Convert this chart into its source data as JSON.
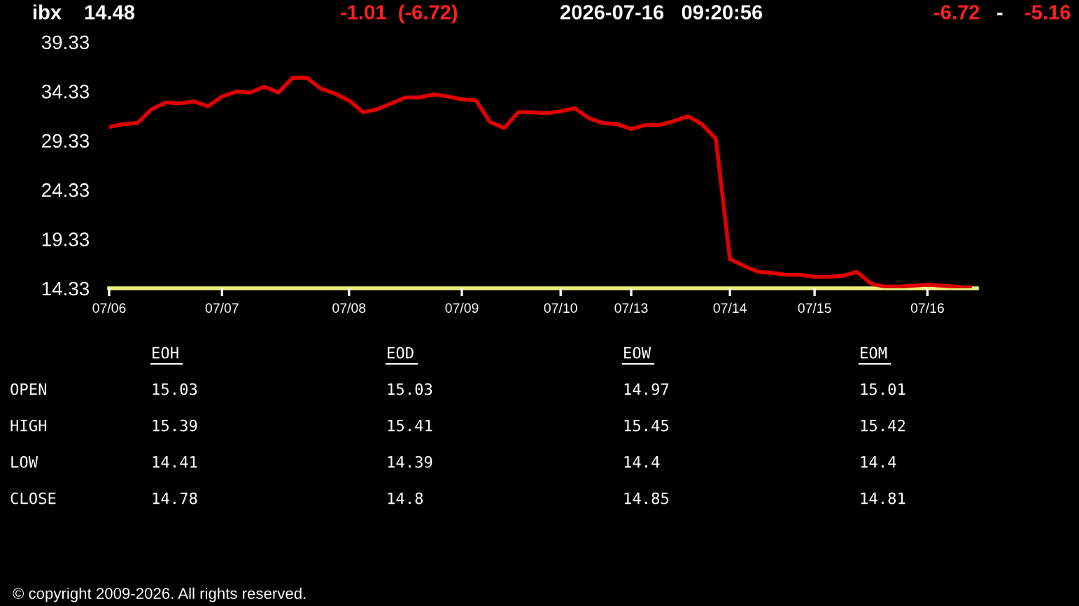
{
  "chart_data": {
    "type": "line",
    "title": "ibx",
    "annotations": [
      "14.48",
      "-1.01  (-6.72)",
      "2026-07-16   09:20:56",
      "-6.72",
      "-",
      "-5.16",
      "EOH",
      "EOD",
      "EOW",
      "EOM",
      "OPEN",
      "15.03",
      "15.03",
      "14.97",
      "15.01",
      "HIGH",
      "15.39",
      "15.41",
      "15.45",
      "15.42",
      "LOW",
      "14.41",
      "14.39",
      "14.4",
      "14.4",
      "CLOSE",
      "14.78",
      "14.8",
      "14.85",
      "14.81",
      "© copyright 2009-2026. All rights reserved."
    ],
    "categories": [
      "07/06",
      null,
      null,
      null,
      null,
      null,
      null,
      null,
      "07/07",
      null,
      null,
      null,
      null,
      null,
      null,
      null,
      null,
      "07/08",
      null,
      null,
      null,
      null,
      null,
      null,
      null,
      "07/09",
      null,
      null,
      null,
      null,
      null,
      null,
      "07/10",
      null,
      null,
      null,
      null,
      "07/13",
      null,
      null,
      null,
      null,
      null,
      null,
      "07/14",
      null,
      null,
      null,
      null,
      null,
      "07/15",
      null,
      null,
      null,
      null,
      null,
      null,
      null,
      "07/16",
      null,
      null,
      null
    ],
    "series": [
      {
        "color": "#e00000",
        "values": [
          30.7,
          31.0,
          31.1,
          32.5,
          33.2,
          33.1,
          33.3,
          32.8,
          33.8,
          34.3,
          34.2,
          34.8,
          34.2,
          35.7,
          35.7,
          34.6,
          34.1,
          33.4,
          32.2,
          32.5,
          33.1,
          33.7,
          33.7,
          34.0,
          33.8,
          33.5,
          33.4,
          31.2,
          30.6,
          32.2,
          32.2,
          32.1,
          32.3,
          32.6,
          31.6,
          31.1,
          31.0,
          30.5,
          30.9,
          30.9,
          31.3,
          31.8,
          31.0,
          29.5,
          17.3,
          16.6,
          16.0,
          15.9,
          15.7,
          15.7,
          15.5,
          15.5,
          15.6,
          16.0,
          14.8,
          14.5,
          14.5,
          14.6,
          14.7,
          14.6,
          14.5,
          14.4
        ]
      }
    ],
    "ylim": [
      14.33,
      39.33
    ],
    "yticks": [
      14.33,
      19.33,
      24.33,
      29.33,
      34.33,
      39.33
    ],
    "grid": false,
    "legend": false,
    "marker": "none",
    "line_style": "solid"
  }
}
